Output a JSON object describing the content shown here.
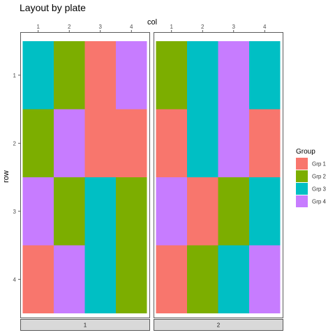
{
  "chart_data": {
    "type": "heatmap",
    "title": "Layout by plate",
    "xlabel": "col",
    "ylabel": "row",
    "x_ticks": [
      "1",
      "2",
      "3",
      "4"
    ],
    "y_ticks": [
      "1",
      "2",
      "3",
      "4"
    ],
    "x_axis_position": "top",
    "y_axis_reversed": true,
    "grid": false,
    "legend": {
      "title": "Group",
      "placement": "right",
      "entries": [
        {
          "label": "Grp 1",
          "color": "#F8766D"
        },
        {
          "label": "Grp 2",
          "color": "#7CAE00"
        },
        {
          "label": "Grp 3",
          "color": "#00BFC4"
        },
        {
          "label": "Grp 4",
          "color": "#C77CFF"
        }
      ]
    },
    "facets": [
      {
        "label": "1",
        "cells": [
          [
            "Grp 3",
            "Grp 2",
            "Grp 1",
            "Grp 4"
          ],
          [
            "Grp 2",
            "Grp 4",
            "Grp 1",
            "Grp 1"
          ],
          [
            "Grp 4",
            "Grp 2",
            "Grp 3",
            "Grp 2"
          ],
          [
            "Grp 1",
            "Grp 4",
            "Grp 3",
            "Grp 2"
          ]
        ]
      },
      {
        "label": "2",
        "cells": [
          [
            "Grp 2",
            "Grp 3",
            "Grp 4",
            "Grp 3"
          ],
          [
            "Grp 1",
            "Grp 3",
            "Grp 4",
            "Grp 1"
          ],
          [
            "Grp 4",
            "Grp 1",
            "Grp 2",
            "Grp 3"
          ],
          [
            "Grp 1",
            "Grp 2",
            "Grp 3",
            "Grp 4"
          ]
        ]
      }
    ]
  }
}
